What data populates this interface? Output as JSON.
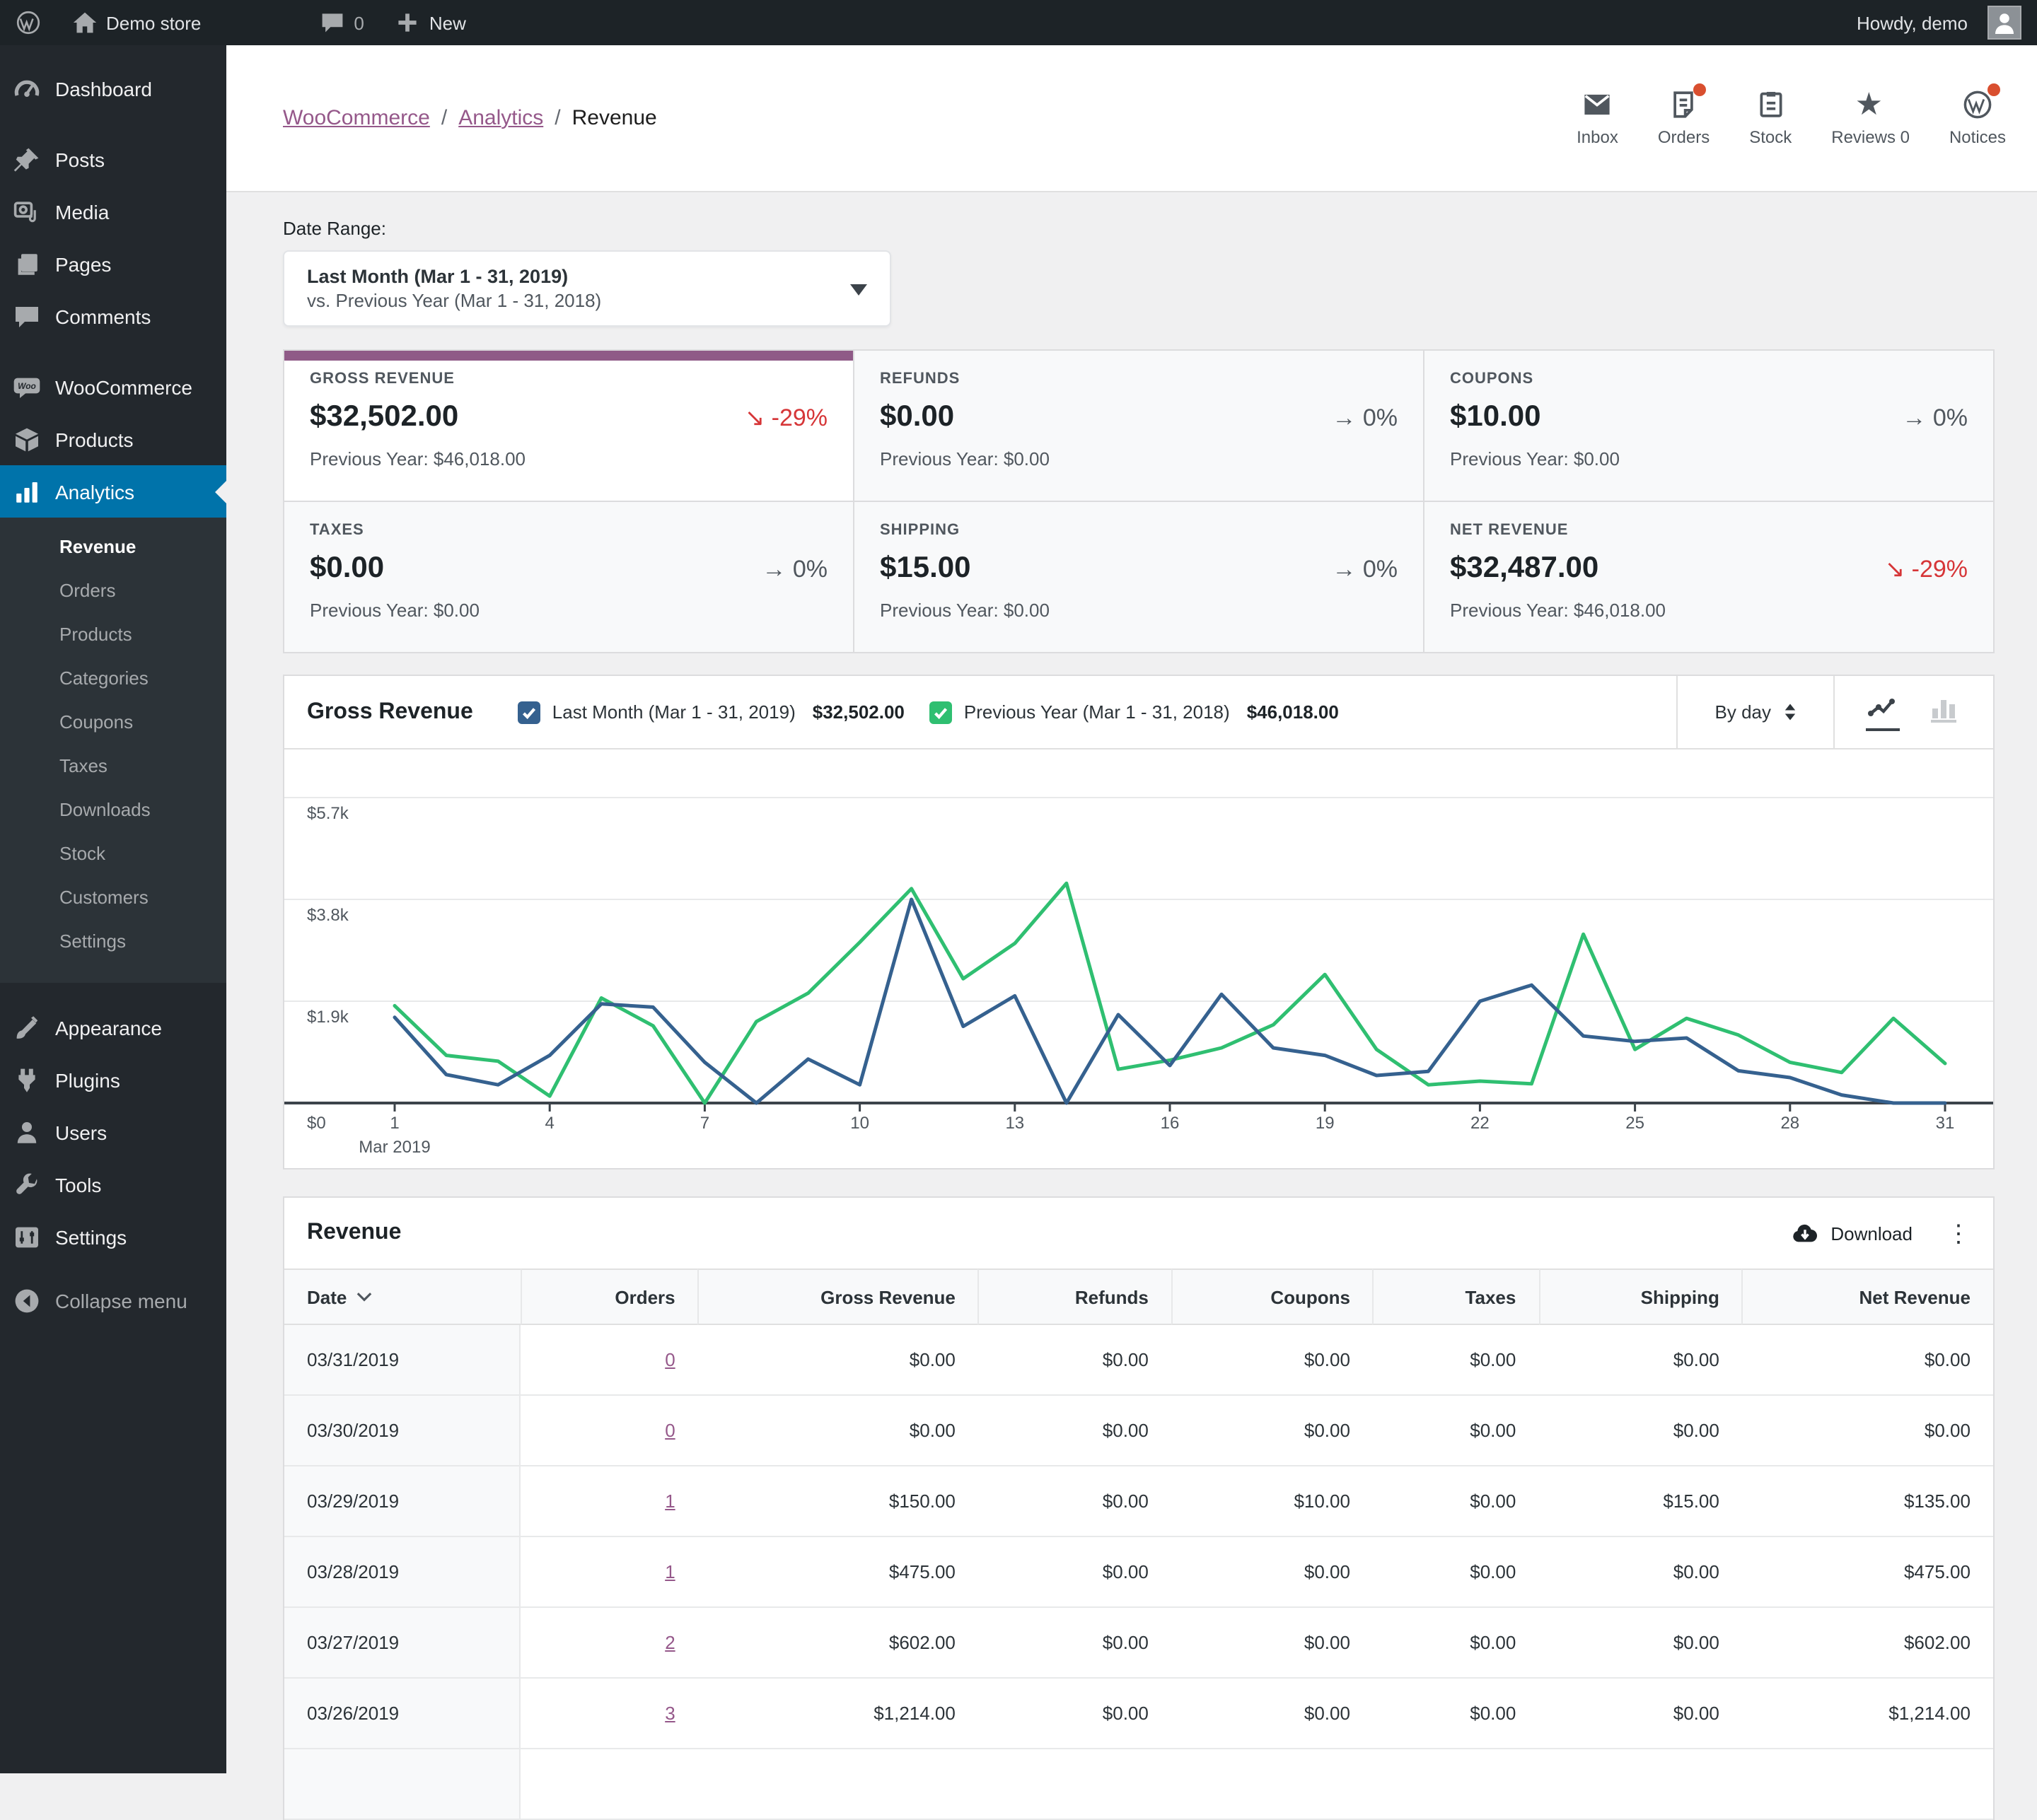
{
  "admin_bar": {
    "site_name": "Demo store",
    "comments_count": "0",
    "new_label": "New",
    "howdy": "Howdy, demo"
  },
  "sidebar": {
    "menu": [
      {
        "label": "Dashboard",
        "icon": "dashboard",
        "group": 0
      },
      {
        "label": "Posts",
        "icon": "posts",
        "group": 1
      },
      {
        "label": "Media",
        "icon": "media",
        "group": 1
      },
      {
        "label": "Pages",
        "icon": "pages",
        "group": 1
      },
      {
        "label": "Comments",
        "icon": "comments",
        "group": 1
      },
      {
        "label": "WooCommerce",
        "icon": "woocommerce",
        "group": 2
      },
      {
        "label": "Products",
        "icon": "products",
        "group": 2
      },
      {
        "label": "Analytics",
        "icon": "analytics",
        "group": 2,
        "active": true
      }
    ],
    "analytics_submenu": [
      {
        "label": "Revenue",
        "active": true
      },
      {
        "label": "Orders"
      },
      {
        "label": "Products"
      },
      {
        "label": "Categories"
      },
      {
        "label": "Coupons"
      },
      {
        "label": "Taxes"
      },
      {
        "label": "Downloads"
      },
      {
        "label": "Stock"
      },
      {
        "label": "Customers"
      },
      {
        "label": "Settings"
      }
    ],
    "menu_lower": [
      {
        "label": "Appearance",
        "icon": "appearance"
      },
      {
        "label": "Plugins",
        "icon": "plugins"
      },
      {
        "label": "Users",
        "icon": "users"
      },
      {
        "label": "Tools",
        "icon": "tools"
      },
      {
        "label": "Settings",
        "icon": "settings"
      }
    ],
    "collapse_label": "Collapse menu"
  },
  "header": {
    "breadcrumb": [
      "WooCommerce",
      "Analytics",
      "Revenue"
    ],
    "actions": [
      {
        "label": "Inbox",
        "icon": "inbox",
        "badge": false
      },
      {
        "label": "Orders",
        "icon": "orders",
        "badge": true
      },
      {
        "label": "Stock",
        "icon": "stock",
        "badge": false
      },
      {
        "label": "Reviews 0",
        "icon": "reviews",
        "badge": false
      },
      {
        "label": "Notices",
        "icon": "notices",
        "badge": true
      }
    ]
  },
  "date_range": {
    "label": "Date Range:",
    "primary": "Last Month (Mar 1 - 31, 2019)",
    "secondary": "vs. Previous Year (Mar 1 - 31, 2018)"
  },
  "tiles": [
    {
      "label": "GROSS REVENUE",
      "value": "$32,502.00",
      "delta": "-29%",
      "trend": "down",
      "previous": "Previous Year: $46,018.00",
      "selected": true
    },
    {
      "label": "REFUNDS",
      "value": "$0.00",
      "delta": "0%",
      "trend": "flat",
      "previous": "Previous Year: $0.00",
      "selected": false
    },
    {
      "label": "COUPONS",
      "value": "$10.00",
      "delta": "0%",
      "trend": "flat",
      "previous": "Previous Year: $0.00",
      "selected": false
    },
    {
      "label": "TAXES",
      "value": "$0.00",
      "delta": "0%",
      "trend": "flat",
      "previous": "Previous Year: $0.00",
      "selected": false
    },
    {
      "label": "SHIPPING",
      "value": "$15.00",
      "delta": "0%",
      "trend": "flat",
      "previous": "Previous Year: $0.00",
      "selected": false
    },
    {
      "label": "NET REVENUE",
      "value": "$32,487.00",
      "delta": "-29%",
      "trend": "down",
      "previous": "Previous Year: $46,018.00",
      "selected": false
    }
  ],
  "chart_panel": {
    "title": "Gross Revenue",
    "interval": "By day"
  },
  "chart_data": {
    "type": "line",
    "title": "Gross Revenue",
    "x_label_month": "Mar 2019",
    "x_ticks": [
      1,
      4,
      7,
      10,
      13,
      16,
      19,
      22,
      25,
      28,
      31
    ],
    "ylim": [
      0,
      5700
    ],
    "y_ticks": [
      {
        "label": "$0",
        "value": 0
      },
      {
        "label": "$1.9k",
        "value": 1900
      },
      {
        "label": "$3.8k",
        "value": 3800
      },
      {
        "label": "$5.7k",
        "value": 5700
      }
    ],
    "grid": true,
    "legend_position": "top",
    "series": [
      {
        "name": "Previous Year (Mar 1 - 31, 2018)",
        "total": "$46,018.00",
        "color": "#2fbf71",
        "values": [
          1815,
          890,
          780,
          130,
          1960,
          1440,
          0,
          1520,
          2050,
          3000,
          4000,
          2320,
          2980,
          4100,
          630,
          800,
          1030,
          1460,
          2400,
          1000,
          340,
          410,
          360,
          3150,
          1000,
          1580,
          1270,
          760,
          570,
          1580,
          740
        ]
      },
      {
        "name": "Last Month (Mar 1 - 31, 2019)",
        "total": "$32,502.00",
        "color": "#35618f",
        "values": [
          1600,
          530,
          340,
          890,
          1850,
          1790,
          760,
          0,
          820,
          340,
          3800,
          1430,
          2000,
          0,
          1650,
          700,
          2030,
          1030,
          890,
          515,
          590,
          1900,
          2200,
          1250,
          1150,
          1214,
          602,
          475,
          150,
          0,
          0
        ]
      }
    ]
  },
  "legend_order": [
    1,
    0
  ],
  "table": {
    "title": "Revenue",
    "download_label": "Download",
    "columns": [
      "Date",
      "Orders",
      "Gross Revenue",
      "Refunds",
      "Coupons",
      "Taxes",
      "Shipping",
      "Net Revenue"
    ],
    "rows": [
      {
        "date": "03/31/2019",
        "orders": "0",
        "values": [
          "$0.00",
          "$0.00",
          "$0.00",
          "$0.00",
          "$0.00",
          "$0.00"
        ]
      },
      {
        "date": "03/30/2019",
        "orders": "0",
        "values": [
          "$0.00",
          "$0.00",
          "$0.00",
          "$0.00",
          "$0.00",
          "$0.00"
        ]
      },
      {
        "date": "03/29/2019",
        "orders": "1",
        "values": [
          "$150.00",
          "$0.00",
          "$10.00",
          "$0.00",
          "$15.00",
          "$135.00"
        ]
      },
      {
        "date": "03/28/2019",
        "orders": "1",
        "values": [
          "$475.00",
          "$0.00",
          "$0.00",
          "$0.00",
          "$0.00",
          "$475.00"
        ]
      },
      {
        "date": "03/27/2019",
        "orders": "2",
        "values": [
          "$602.00",
          "$0.00",
          "$0.00",
          "$0.00",
          "$0.00",
          "$602.00"
        ]
      },
      {
        "date": "03/26/2019",
        "orders": "3",
        "values": [
          "$1,214.00",
          "$0.00",
          "$0.00",
          "$0.00",
          "$0.00",
          "$1,214.00"
        ]
      }
    ]
  },
  "colors": {
    "wp_admin_blue": "#0073aa",
    "woo_purple": "#95588a",
    "tile_accent_purple": "#8f5a87",
    "chart_blue": "#35618f",
    "chart_green": "#2fbf71",
    "negative_red": "#d63638",
    "badge_orange": "#d94f2f",
    "sidebar_dark": "#23282d"
  },
  "glyphs": {
    "trend_down": "↘",
    "trend_flat": "→",
    "kebab": "⋮"
  }
}
